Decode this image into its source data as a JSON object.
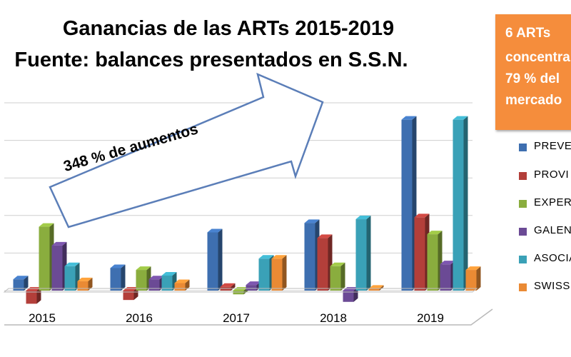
{
  "title_lines": [
    "Ganancias de las ARTs 2015-2019",
    "Fuente: balances presentados en S.S.N."
  ],
  "callout_lines": [
    "6 ARTs",
    "concentra",
    "79 % del",
    "mercado"
  ],
  "arrow_label": "348 % de aumentos",
  "colors": {
    "series": [
      "#3e6fb0",
      "#b33f3a",
      "#8aad3e",
      "#6b4a95",
      "#3aa1b7",
      "#ea8a34"
    ],
    "callout": "#f58d3c",
    "arrow_fill": "#ffffff",
    "arrow_stroke": "#5b7eb8"
  },
  "chart_data": {
    "type": "bar",
    "categories": [
      "2015",
      "2016",
      "2017",
      "2018",
      "2019"
    ],
    "series": [
      {
        "name": "PREVE",
        "values": [
          0.6,
          1.2,
          3.1,
          3.6,
          9.1
        ]
      },
      {
        "name": "PROVI",
        "values": [
          -0.7,
          -0.5,
          0.2,
          2.8,
          3.9
        ]
      },
      {
        "name": "EXPERT",
        "values": [
          3.4,
          1.1,
          -0.2,
          1.3,
          3.0
        ]
      },
      {
        "name": "GALEN",
        "values": [
          2.4,
          0.6,
          0.3,
          -0.6,
          1.4
        ]
      },
      {
        "name": "ASOCIA",
        "values": [
          1.3,
          0.8,
          1.7,
          3.8,
          9.1
        ]
      },
      {
        "name": "SWISS",
        "values": [
          0.5,
          0.4,
          1.7,
          0.1,
          1.1
        ]
      }
    ],
    "ylim": [
      -1,
      10
    ],
    "grid": true,
    "legend": "right"
  }
}
